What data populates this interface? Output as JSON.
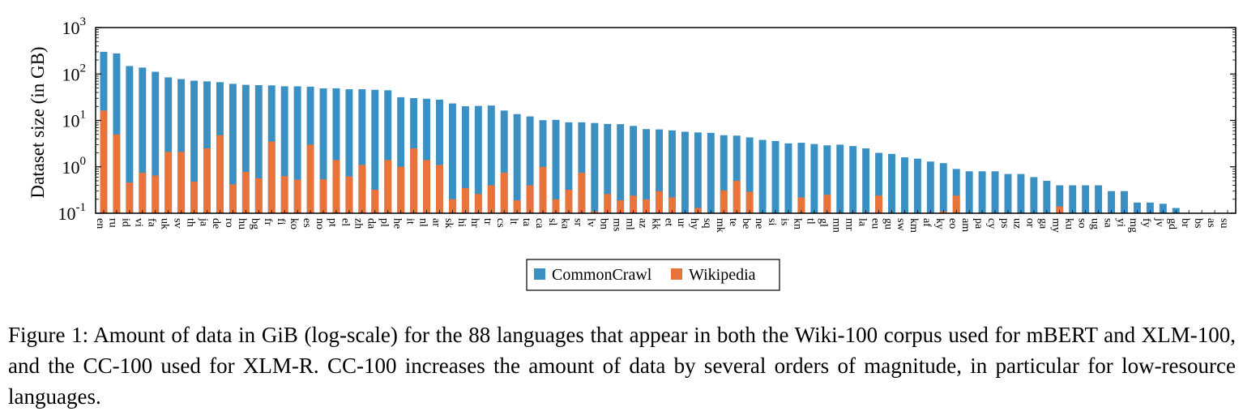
{
  "chart_data": {
    "type": "bar",
    "stacking": "overlaid",
    "y_scale": "log",
    "ylim": [
      0.1,
      1000
    ],
    "y_ticks": [
      {
        "base": "10",
        "exp": "3"
      },
      {
        "base": "10",
        "exp": "2"
      },
      {
        "base": "10",
        "exp": "1"
      },
      {
        "base": "10",
        "exp": "0"
      },
      {
        "base": "10",
        "exp": "-1"
      }
    ],
    "ylabel": "Dataset size (in GB)",
    "xlabel": "",
    "grid": false,
    "legend_position": "bottom-center",
    "categories": [
      "en",
      "ru",
      "id",
      "vi",
      "fa",
      "uk",
      "sv",
      "th",
      "ja",
      "de",
      "ro",
      "hu",
      "bg",
      "fr",
      "fi",
      "ko",
      "es",
      "no",
      "pt",
      "el",
      "zh",
      "da",
      "pl",
      "he",
      "it",
      "nl",
      "ar",
      "sk",
      "hi",
      "hr",
      "tr",
      "cs",
      "lt",
      "ta",
      "ca",
      "sl",
      "ka",
      "sr",
      "lv",
      "bn",
      "ms",
      "ml",
      "az",
      "kk",
      "et",
      "ur",
      "hy",
      "sq",
      "mk",
      "te",
      "be",
      "ne",
      "si",
      "is",
      "kn",
      "tl",
      "gl",
      "mn",
      "mr",
      "la",
      "eu",
      "gu",
      "sw",
      "km",
      "af",
      "ky",
      "eo",
      "am",
      "pa",
      "cy",
      "ps",
      "uz",
      "or",
      "ga",
      "my",
      "ku",
      "so",
      "ug",
      "sa",
      "yi",
      "mg",
      "fy",
      "jv",
      "gd",
      "br",
      "bs",
      "as",
      "su"
    ],
    "series": [
      {
        "name": "CommonCrawl",
        "color": "#3a8fc3",
        "values": [
          300.8,
          278.0,
          148.3,
          137.3,
          111.6,
          84.6,
          77.8,
          71.7,
          69.3,
          66.6,
          61.4,
          58.4,
          57.5,
          56.8,
          54.3,
          54.2,
          53.3,
          49.0,
          49.1,
          46.9,
          46.9,
          45.6,
          44.6,
          31.6,
          30.2,
          29.3,
          28.0,
          23.2,
          20.2,
          20.5,
          20.9,
          16.3,
          13.7,
          12.2,
          10.1,
          10.3,
          9.1,
          9.1,
          8.8,
          8.4,
          8.3,
          7.6,
          6.5,
          6.4,
          6.1,
          5.7,
          5.5,
          5.4,
          4.8,
          4.7,
          4.3,
          3.8,
          3.6,
          3.2,
          3.3,
          3.1,
          2.9,
          3.0,
          2.8,
          2.5,
          2.0,
          1.9,
          1.6,
          1.5,
          1.3,
          1.2,
          0.9,
          0.8,
          0.8,
          0.8,
          0.7,
          0.7,
          0.6,
          0.5,
          0.4,
          0.4,
          0.4,
          0.4,
          0.3,
          0.3,
          0.17,
          0.17,
          0.16,
          0.13,
          0.1,
          0.1,
          0.1,
          0.1
        ]
      },
      {
        "name": "Wikipedia",
        "color": "#e8743b",
        "values": [
          16.3,
          5.0,
          0.46,
          0.75,
          0.65,
          2.1,
          2.1,
          0.48,
          2.5,
          4.8,
          0.42,
          0.78,
          0.57,
          3.5,
          0.63,
          0.53,
          3.0,
          0.54,
          1.4,
          0.62,
          1.1,
          0.32,
          1.4,
          1.0,
          2.5,
          1.4,
          1.1,
          0.2,
          0.35,
          0.26,
          0.4,
          0.75,
          0.19,
          0.4,
          1.0,
          0.2,
          0.32,
          0.75,
          0.11,
          0.26,
          0.19,
          0.24,
          0.2,
          0.3,
          0.22,
          0.1,
          0.13,
          0.1,
          0.31,
          0.5,
          0.29,
          0.1,
          0.1,
          0.1,
          0.22,
          0.1,
          0.25,
          0.1,
          0.1,
          0.1,
          0.24,
          0.1,
          0.1,
          0.1,
          0.1,
          0.11,
          0.24,
          0.1,
          0.1,
          0.1,
          0.1,
          0.1,
          0.1,
          0.1,
          0.14,
          0.1,
          0.1,
          0.1,
          0.1,
          0.1,
          0.1,
          0.1,
          0.1,
          0.1,
          0.1,
          0.1,
          0.1,
          0.1
        ]
      }
    ]
  },
  "caption": "Figure 1: Amount of data in GiB (log-scale) for the 88 languages that appear in both the Wiki-100 corpus used for mBERT and XLM-100, and the CC-100 used for XLM-R. CC-100 increases the amount of data by several orders of magnitude, in particular for low-resource languages."
}
